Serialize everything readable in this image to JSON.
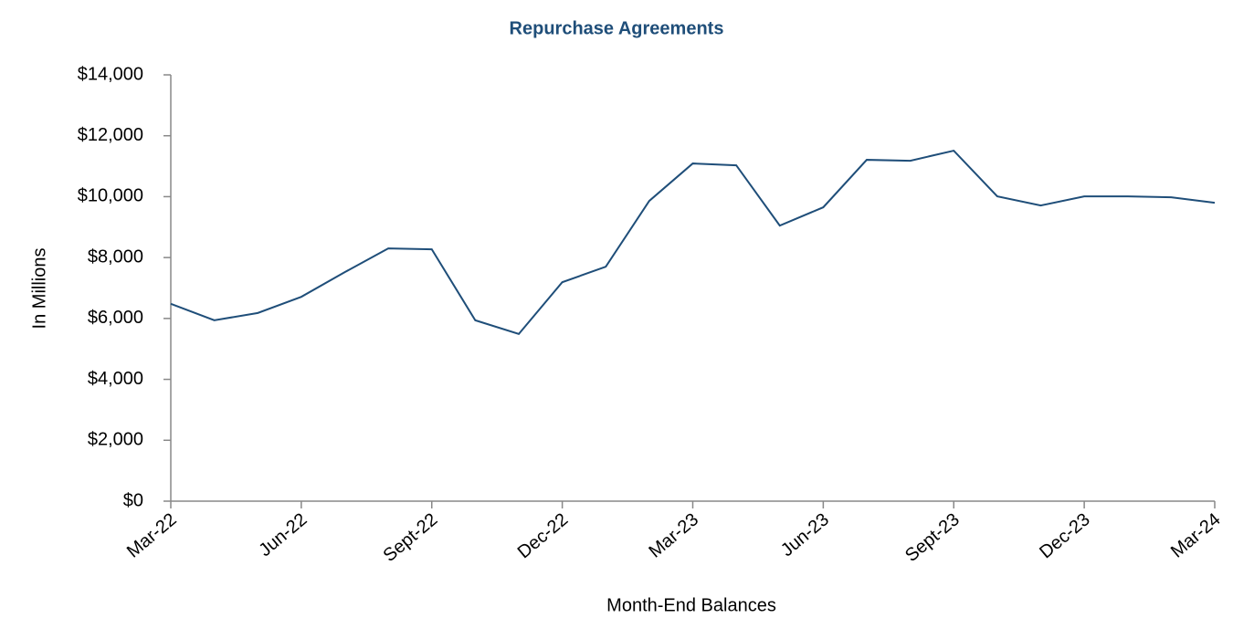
{
  "chart_data": {
    "type": "line",
    "title": "Repurchase Agreements",
    "x_label": "Month-End Balances",
    "y_label": "In Millions",
    "categories": [
      "Mar-22",
      null,
      null,
      "Jun-22",
      null,
      null,
      "Sept-22",
      null,
      null,
      "Dec-22",
      null,
      null,
      "Mar-23",
      null,
      null,
      "Jun-23",
      null,
      null,
      "Sept-23",
      null,
      null,
      "Dec-23",
      null,
      null,
      "Mar-24"
    ],
    "series": [
      {
        "name": "Repurchase Agreements",
        "color": "#1f4e79",
        "values": [
          6480,
          5940,
          6180,
          6710,
          7520,
          8300,
          8270,
          5940,
          5490,
          7190,
          7700,
          9860,
          11090,
          11030,
          9050,
          9650,
          11210,
          11180,
          11510,
          10010,
          9710,
          10010,
          10010,
          9980,
          9800
        ]
      }
    ],
    "ylim": [
      0,
      14000
    ],
    "yticks": [
      {
        "value": 0,
        "label": "$0"
      },
      {
        "value": 2000,
        "label": "$2,000"
      },
      {
        "value": 4000,
        "label": "$4,000"
      },
      {
        "value": 6000,
        "label": "$6,000"
      },
      {
        "value": 8000,
        "label": "$8,000"
      },
      {
        "value": 10000,
        "label": "$10,000"
      },
      {
        "value": 12000,
        "label": "$12,000"
      },
      {
        "value": 14000,
        "label": "$14,000"
      }
    ],
    "grid": false
  }
}
